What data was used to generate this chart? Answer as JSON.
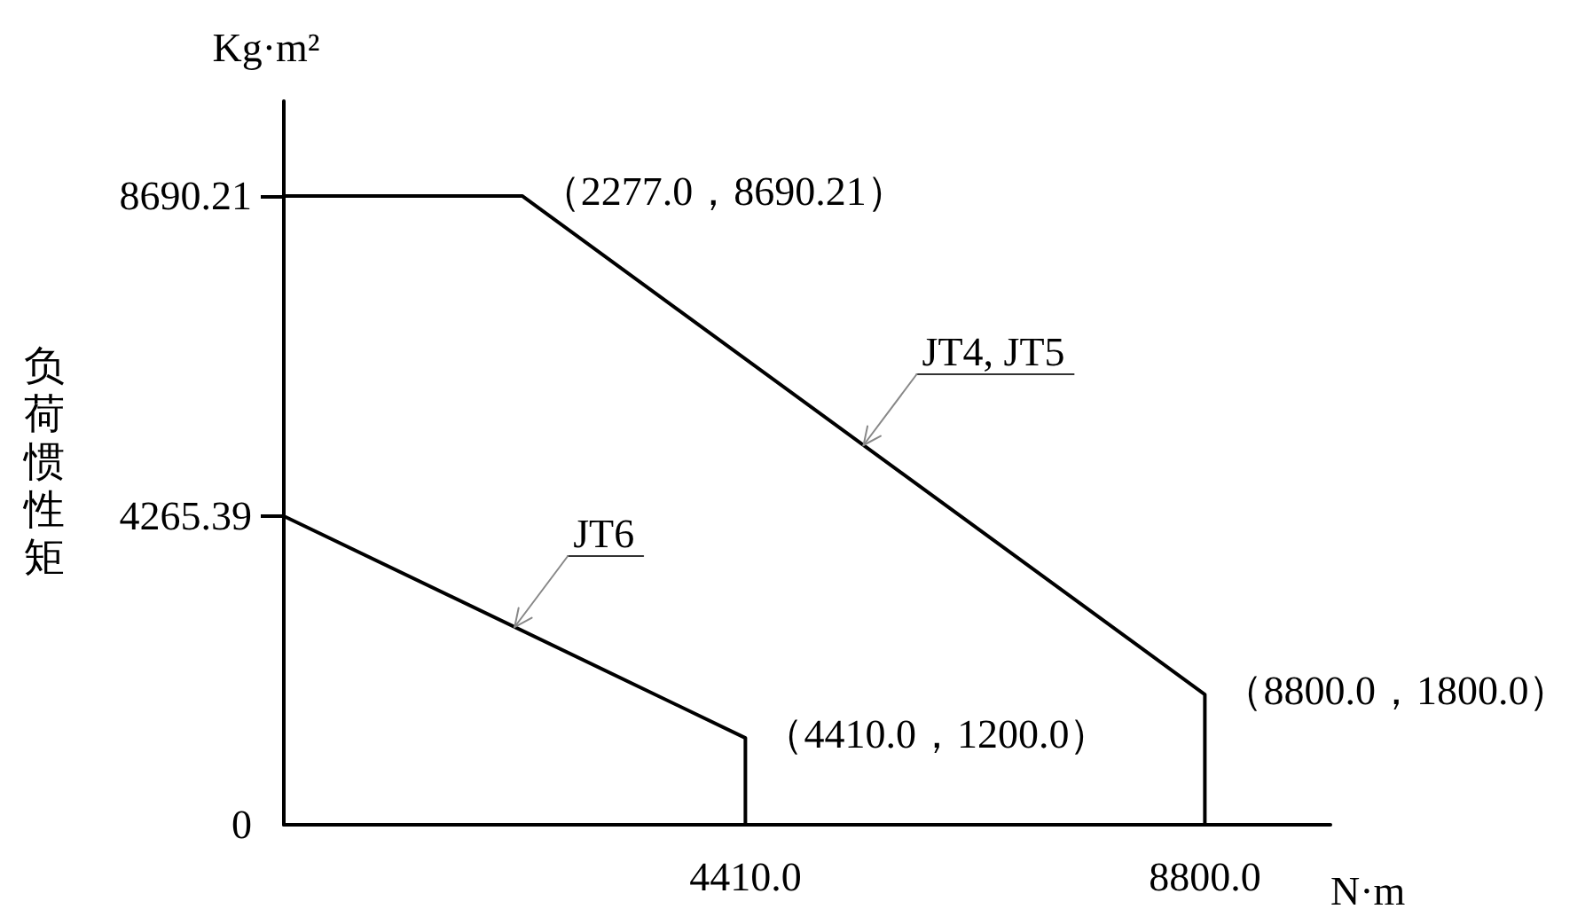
{
  "chart_data": {
    "type": "line",
    "xlabel": "N·m",
    "ylabel": "负荷惯性矩",
    "annotations": [
      "Kg·m²",
      {
        "text": "（2277.0，8690.21）",
        "x": 2277,
        "y": 8690.21
      },
      {
        "text": "（8800.0，1800.0）",
        "x": 8800,
        "y": 1800
      },
      {
        "text": "（4410.0，1200.0）",
        "x": 4410,
        "y": 1200
      }
    ],
    "series": [
      {
        "name": "JT4, JT5",
        "color": "#000000",
        "x": [
          0,
          2277,
          8800,
          8800
        ],
        "values": [
          8690.21,
          8690.21,
          1800,
          0
        ]
      },
      {
        "name": "JT6",
        "color": "#000000",
        "x": [
          0,
          4410,
          4410
        ],
        "values": [
          4265.39,
          1200,
          0
        ]
      }
    ],
    "xlim": [
      0,
      10000
    ],
    "xticks": [
      {
        "value": 4410,
        "label": "4410.0"
      },
      {
        "value": 8800,
        "label": "8800.0"
      }
    ],
    "ylim": [
      0,
      10000
    ],
    "yticks": [
      0,
      4265.39,
      8690.21
    ]
  }
}
